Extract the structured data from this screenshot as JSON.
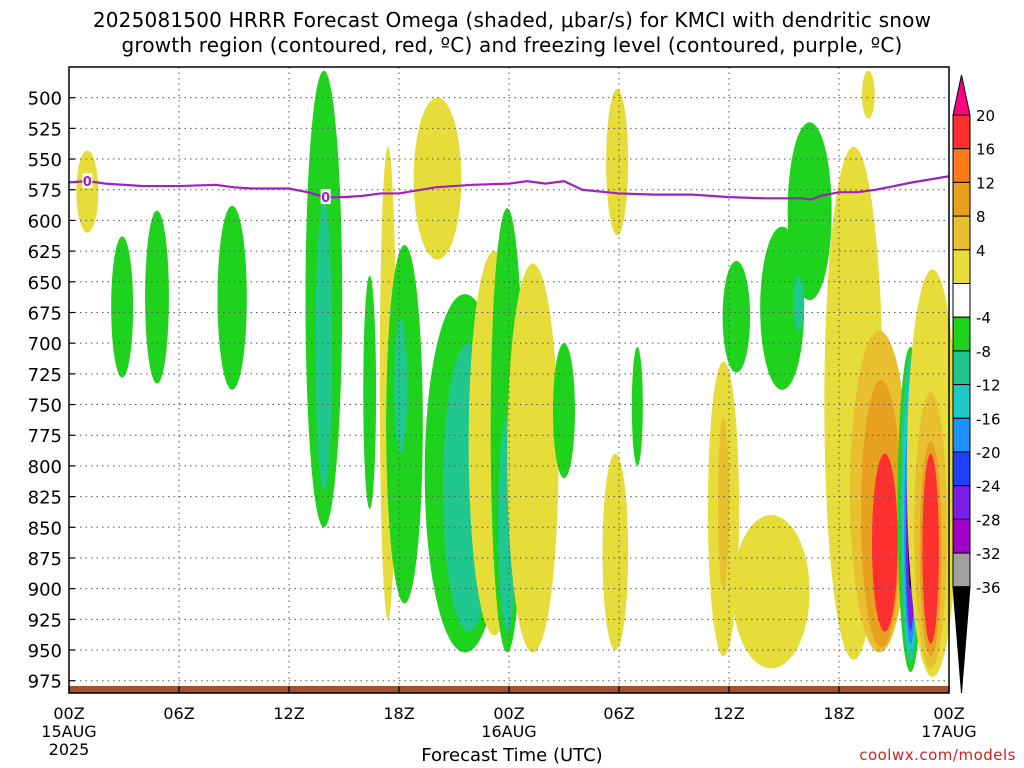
{
  "title": "2025081500 HRRR Forecast Omega (shaded, μbar/s) for KMCI with dendritic snow\ngrowth region (contoured, red, ºC) and freezing level (contoured, purple, ºC)",
  "credit": "coolwx.com/models",
  "chart_data": {
    "type": "heatmap",
    "title": "2025081500 HRRR Forecast Omega (shaded, μbar/s) for KMCI with dendritic snow growth region (contoured, red, ºC) and freezing level (contoured, purple, ºC)",
    "xlabel": "Forecast Time (UTC)",
    "ylabel": "",
    "x_axis": {
      "range_hours": [
        0,
        48
      ],
      "ticks": [
        {
          "hour": 0,
          "label": "00Z",
          "date": "15AUG",
          "year": "2025"
        },
        {
          "hour": 6,
          "label": "06Z"
        },
        {
          "hour": 12,
          "label": "12Z"
        },
        {
          "hour": 18,
          "label": "18Z"
        },
        {
          "hour": 24,
          "label": "00Z",
          "date": "16AUG"
        },
        {
          "hour": 30,
          "label": "06Z"
        },
        {
          "hour": 36,
          "label": "12Z"
        },
        {
          "hour": 42,
          "label": "18Z"
        },
        {
          "hour": 48,
          "label": "00Z",
          "date": "17AUG"
        }
      ]
    },
    "y_axis": {
      "unit": "hPa",
      "inverted": true,
      "range": [
        475,
        985
      ],
      "ticks": [
        500,
        525,
        550,
        575,
        600,
        625,
        650,
        675,
        700,
        725,
        750,
        775,
        800,
        825,
        850,
        875,
        900,
        925,
        950,
        975
      ]
    },
    "grid": true,
    "colorbar": {
      "labels": [
        "20",
        "16",
        "12",
        "8",
        "4",
        "-4",
        "-8",
        "-12",
        "-16",
        "-20",
        "-24",
        "-28",
        "-32",
        "-36"
      ],
      "colors": [
        "#ff0080",
        "#ff3030",
        "#ff7a1a",
        "#e8a020",
        "#e8c030",
        "#e6dd3a",
        "#ffffff",
        "#1ed21e",
        "#20c890",
        "#20c8c8",
        "#1e90ff",
        "#1e40ff",
        "#7a1ee6",
        "#a000c8",
        "#a0a0a0",
        "#000000"
      ]
    },
    "freezing_level": {
      "label": "0",
      "color": "#a020c0",
      "points": [
        [
          0,
          569
        ],
        [
          1,
          568
        ],
        [
          2,
          570
        ],
        [
          4,
          572
        ],
        [
          6,
          572
        ],
        [
          8,
          571
        ],
        [
          9,
          573
        ],
        [
          10,
          574
        ],
        [
          12,
          574
        ],
        [
          13,
          577
        ],
        [
          14,
          581
        ],
        [
          15,
          581
        ],
        [
          16,
          580
        ],
        [
          17,
          578
        ],
        [
          18,
          578
        ],
        [
          20,
          573
        ],
        [
          22,
          571
        ],
        [
          24,
          570
        ],
        [
          25,
          568
        ],
        [
          26,
          570
        ],
        [
          27,
          568
        ],
        [
          28,
          575
        ],
        [
          30,
          578
        ],
        [
          32,
          579
        ],
        [
          34,
          579
        ],
        [
          36,
          581
        ],
        [
          38,
          582
        ],
        [
          40,
          582
        ],
        [
          40.5,
          583
        ],
        [
          41,
          580
        ],
        [
          42,
          577
        ],
        [
          43,
          577
        ],
        [
          44,
          575
        ],
        [
          46,
          569
        ],
        [
          48,
          564
        ]
      ]
    },
    "omega_regions": [
      {
        "t": 1.0,
        "p": [
          543,
          610
        ],
        "w": 0.6,
        "level": "4"
      },
      {
        "t": 2.9,
        "p": [
          613,
          728
        ],
        "w": 0.6,
        "level": "-4"
      },
      {
        "t": 4.8,
        "p": [
          592,
          733
        ],
        "w": 0.65,
        "level": "-4"
      },
      {
        "t": 8.9,
        "p": [
          588,
          738
        ],
        "w": 0.8,
        "level": "-4"
      },
      {
        "t": 13.9,
        "p": [
          478,
          850
        ],
        "w": 1.0,
        "level": "-4"
      },
      {
        "t": 13.9,
        "p": [
          585,
          820
        ],
        "w": 0.45,
        "level": "-8"
      },
      {
        "t": 16.4,
        "p": [
          645,
          835
        ],
        "w": 0.35,
        "level": "-4"
      },
      {
        "t": 17.4,
        "p": [
          540,
          925
        ],
        "w": 0.45,
        "level": "4"
      },
      {
        "t": 18.3,
        "p": [
          620,
          912
        ],
        "w": 1.0,
        "level": "-4"
      },
      {
        "t": 18.1,
        "p": [
          680,
          790
        ],
        "w": 0.35,
        "level": "-8"
      },
      {
        "t": 20.1,
        "p": [
          500,
          632
        ],
        "w": 1.3,
        "level": "4"
      },
      {
        "t": 21.6,
        "p": [
          660,
          952
        ],
        "w": 2.2,
        "level": "-4"
      },
      {
        "t": 21.8,
        "p": [
          700,
          935
        ],
        "w": 1.4,
        "level": "-8"
      },
      {
        "t": 23.2,
        "p": [
          625,
          938
        ],
        "w": 1.4,
        "level": "4"
      },
      {
        "t": 23.9,
        "p": [
          590,
          952
        ],
        "w": 0.9,
        "level": "-4"
      },
      {
        "t": 23.9,
        "p": [
          760,
          935
        ],
        "w": 0.5,
        "level": "-8"
      },
      {
        "t": 25.3,
        "p": [
          635,
          952
        ],
        "w": 1.4,
        "level": "4"
      },
      {
        "t": 27.0,
        "p": [
          700,
          810
        ],
        "w": 0.6,
        "level": "-4"
      },
      {
        "t": 29.9,
        "p": [
          493,
          612
        ],
        "w": 0.6,
        "level": "4"
      },
      {
        "t": 29.8,
        "p": [
          790,
          950
        ],
        "w": 0.7,
        "level": "4"
      },
      {
        "t": 31.0,
        "p": [
          703,
          800
        ],
        "w": 0.3,
        "level": "-4"
      },
      {
        "t": 35.7,
        "p": [
          715,
          955
        ],
        "w": 0.85,
        "level": "4"
      },
      {
        "t": 35.7,
        "p": [
          760,
          900
        ],
        "w": 0.3,
        "level": "8"
      },
      {
        "t": 38.3,
        "p": [
          840,
          965
        ],
        "w": 2.1,
        "level": "4"
      },
      {
        "t": 36.4,
        "p": [
          633,
          724
        ],
        "w": 0.75,
        "level": "-4"
      },
      {
        "t": 38.9,
        "p": [
          605,
          738
        ],
        "w": 1.2,
        "level": "-4"
      },
      {
        "t": 40.4,
        "p": [
          520,
          665
        ],
        "w": 1.2,
        "level": "-4"
      },
      {
        "t": 39.8,
        "p": [
          645,
          690
        ],
        "w": 0.3,
        "level": "-8"
      },
      {
        "t": 42.8,
        "p": [
          540,
          958
        ],
        "w": 1.6,
        "level": "4"
      },
      {
        "t": 43.6,
        "p": [
          478,
          517
        ],
        "w": 0.35,
        "level": "4"
      },
      {
        "t": 44.2,
        "p": [
          690,
          952
        ],
        "w": 1.6,
        "level": "8"
      },
      {
        "t": 44.3,
        "p": [
          730,
          948
        ],
        "w": 1.1,
        "level": "12"
      },
      {
        "t": 44.5,
        "p": [
          790,
          935
        ],
        "w": 0.7,
        "level": "20"
      },
      {
        "t": 45.9,
        "p": [
          703,
          968
        ],
        "w": 0.7,
        "level": "-4"
      },
      {
        "t": 45.9,
        "p": [
          710,
          960
        ],
        "w": 0.55,
        "level": "-8"
      },
      {
        "t": 45.9,
        "p": [
          730,
          952
        ],
        "w": 0.45,
        "level": "-12"
      },
      {
        "t": 45.9,
        "p": [
          760,
          945
        ],
        "w": 0.35,
        "level": "-16"
      },
      {
        "t": 45.9,
        "p": [
          780,
          935
        ],
        "w": 0.25,
        "level": "-24"
      },
      {
        "t": 45.9,
        "p": [
          805,
          900
        ],
        "w": 0.12,
        "level": "-36"
      },
      {
        "t": 47.1,
        "p": [
          640,
          972
        ],
        "w": 1.4,
        "level": "4"
      },
      {
        "t": 47.0,
        "p": [
          740,
          965
        ],
        "w": 0.9,
        "level": "8"
      },
      {
        "t": 47.0,
        "p": [
          780,
          955
        ],
        "w": 0.6,
        "level": "12"
      },
      {
        "t": 47.0,
        "p": [
          790,
          945
        ],
        "w": 0.45,
        "level": "20"
      }
    ]
  }
}
